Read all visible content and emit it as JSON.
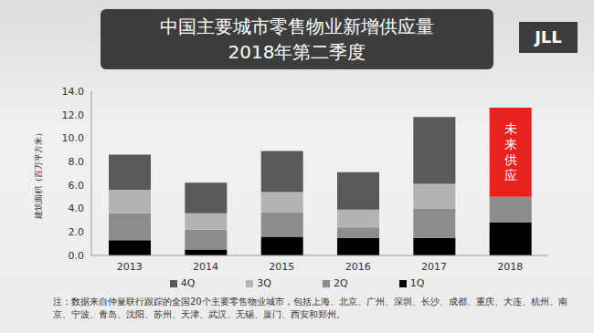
{
  "logo": "JLL",
  "chart_data": {
    "type": "bar",
    "title": "中国主要城市零售物业新增供应量",
    "subtitle": "2018年第二季度",
    "y_label": "建筑面积（百万平方米）",
    "note": "注：数据来自仲量联行跟踪的全国20个主要零售物业城市，包括上海、北京、广州、深圳、长沙、成都、重庆、大连、杭州、南京、宁波、青岛、沈阳、苏州、天津、武汉、无锡、厦门、西安和郑州。",
    "categories": [
      "2013",
      "2014",
      "2015",
      "2016",
      "2017",
      "2018"
    ],
    "series": [
      {
        "name": "1Q",
        "color": "#000000",
        "values": [
          1.3,
          0.5,
          1.6,
          1.5,
          1.5,
          2.8
        ]
      },
      {
        "name": "2Q",
        "color": "#8c8c8c",
        "values": [
          2.3,
          1.7,
          2.1,
          0.9,
          2.5,
          2.2
        ]
      },
      {
        "name": "3Q",
        "color": "#b3b3b3",
        "values": [
          2.0,
          1.4,
          1.7,
          1.5,
          2.1,
          null
        ]
      },
      {
        "name": "4Q",
        "color": "#595959",
        "values": [
          3.0,
          2.6,
          3.5,
          3.2,
          5.7,
          null
        ]
      },
      {
        "name": "未来供应",
        "color": "#e8231f",
        "values": [
          null,
          null,
          null,
          null,
          null,
          7.6
        ]
      }
    ],
    "ylim": [
      0,
      14
    ],
    "yticks": [
      {
        "value": 0,
        "label": "0.0"
      },
      {
        "value": 2,
        "label": "2.0"
      },
      {
        "value": 4,
        "label": "4.0"
      },
      {
        "value": 6,
        "label": "6.0"
      },
      {
        "value": 8,
        "label": "8.0"
      },
      {
        "value": 10,
        "label": "10.0"
      },
      {
        "value": 12,
        "label": "12.0"
      },
      {
        "value": 14,
        "label": "14.0"
      }
    ],
    "stacked": true,
    "grid": false,
    "legend": "bottom"
  }
}
